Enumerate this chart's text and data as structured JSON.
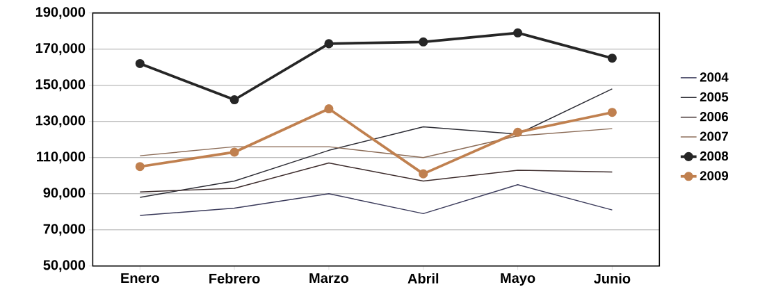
{
  "chart_data": {
    "type": "line",
    "categories": [
      "Enero",
      "Febrero",
      "Marzo",
      "Abril",
      "Mayo",
      "Junio"
    ],
    "series": [
      {
        "name": "2004",
        "color": "#3a3a5a",
        "values": [
          78000,
          82000,
          90000,
          79000,
          95000,
          81000
        ]
      },
      {
        "name": "2005",
        "color": "#2b2b33",
        "values": [
          88000,
          97000,
          114000,
          127000,
          123000,
          148000
        ]
      },
      {
        "name": "2006",
        "color": "#3b2a2a",
        "values": [
          91000,
          93000,
          107000,
          97000,
          103000,
          102000
        ]
      },
      {
        "name": "2007",
        "color": "#8a6a55",
        "values": [
          111000,
          116000,
          116000,
          110000,
          122000,
          126000
        ]
      },
      {
        "name": "2008",
        "color": "#262626",
        "marker": "circle",
        "values": [
          162000,
          142000,
          173000,
          174000,
          179000,
          165000
        ]
      },
      {
        "name": "2009",
        "color": "#c0804f",
        "marker": "circle",
        "values": [
          105000,
          113000,
          137000,
          101000,
          124000,
          135000
        ]
      }
    ],
    "ylim": [
      50000,
      190000
    ],
    "yticks": [
      {
        "value": 50000,
        "label": "50,000"
      },
      {
        "value": 70000,
        "label": "70,000"
      },
      {
        "value": 90000,
        "label": "90,000"
      },
      {
        "value": 110000,
        "label": "110,000"
      },
      {
        "value": 130000,
        "label": "130,000"
      },
      {
        "value": 150000,
        "label": "150,000"
      },
      {
        "value": 170000,
        "label": "170,000"
      },
      {
        "value": 190000,
        "label": "190,000"
      }
    ],
    "grid": "y",
    "legend": "right"
  }
}
